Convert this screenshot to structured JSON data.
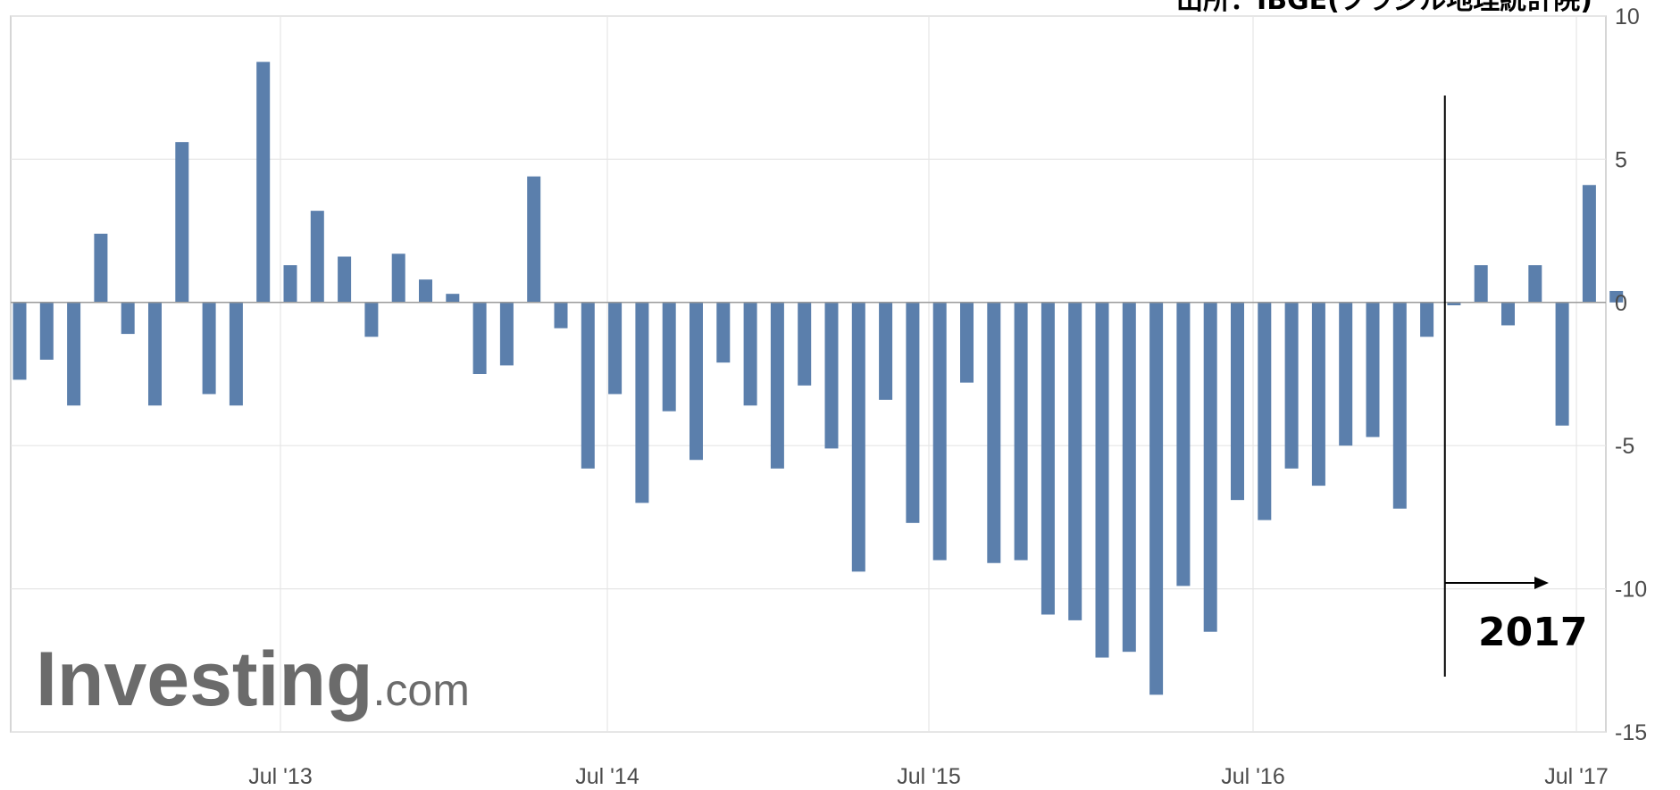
{
  "chart_data": {
    "type": "bar",
    "source": "出所：IBGE(ブラジル地理統計院)",
    "annotation": "2017",
    "watermark": {
      "main": "Investing",
      "suffix": ".com"
    },
    "ylim": [
      -15,
      10
    ],
    "y_ticks": [
      10,
      5,
      0,
      -5,
      -10,
      -15
    ],
    "x_ticks": [
      "Jul '13",
      "Jul '14",
      "Jul '15",
      "Jul '16",
      "Jul '17"
    ],
    "bar_color": "#5b7fac",
    "grid": true,
    "values": [
      -2.7,
      -2.0,
      -3.6,
      2.4,
      -1.1,
      -3.6,
      5.6,
      -3.2,
      -3.6,
      8.4,
      1.3,
      3.2,
      1.6,
      -1.2,
      1.7,
      0.8,
      0.3,
      -2.5,
      -2.2,
      4.4,
      -0.9,
      -5.8,
      -3.2,
      -7.0,
      -3.8,
      -5.5,
      -2.1,
      -3.6,
      -5.8,
      -2.9,
      -5.1,
      -9.4,
      -3.4,
      -7.7,
      -9.0,
      -2.8,
      -9.1,
      -9.0,
      -10.9,
      -11.1,
      -12.4,
      -12.2,
      -13.7,
      -9.9,
      -11.5,
      -6.9,
      -7.6,
      -5.8,
      -6.4,
      -5.0,
      -4.7,
      -7.2,
      -1.2,
      -0.1,
      1.3,
      -0.8,
      1.3,
      -4.3,
      4.1,
      0.4
    ],
    "vertical_marker_after_index": 52
  }
}
